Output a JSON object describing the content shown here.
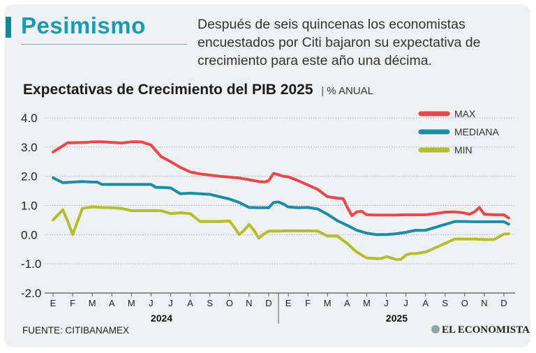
{
  "header": {
    "headline": "Pesimismo",
    "intro": "Después de seis quincenas los economistas encuestados por Citi bajaron su expectativa de crecimiento para este año una décima."
  },
  "footer": {
    "source": "FUENTE: CITIBANAMEX",
    "brand": "EL ECONOMISTA"
  },
  "chart_data": {
    "type": "line",
    "title": "Expectativas de Crecimiento del PIB 2025",
    "unit": "% ANUAL",
    "xlabel": "",
    "ylabel": "",
    "ylim": [
      -2.0,
      4.0
    ],
    "yticks": [
      "4.0",
      "3.0",
      "2.0",
      "1.0",
      "0.0",
      "-1.0",
      "-2.0"
    ],
    "ytick_values": [
      4,
      3,
      2,
      1,
      0,
      -1,
      -2
    ],
    "grid": true,
    "legend_position": "top-right",
    "months": [
      "E",
      "F",
      "M",
      "A",
      "M",
      "J",
      "J",
      "A",
      "S",
      "O",
      "N",
      "D",
      "E",
      "F",
      "M",
      "A",
      "M",
      "J",
      "J",
      "A",
      "S",
      "O",
      "N",
      "D"
    ],
    "years": [
      "2024",
      "2025"
    ],
    "x_unit": "months since January 2024",
    "series": [
      {
        "name": "MAX",
        "color": "#e8474b",
        "x": [
          0,
          0.75,
          1,
          1.75,
          2,
          2.5,
          3,
          3.5,
          4,
          4.5,
          5,
          5.5,
          6,
          6.5,
          7,
          7.5,
          8,
          8.5,
          9,
          9.5,
          10,
          10.5,
          10.8,
          11,
          11.25,
          11.5,
          11.75,
          12,
          12.5,
          13,
          13.5,
          14,
          14.5,
          14.8,
          15,
          15.25,
          15.5,
          15.75,
          16,
          16.5,
          17,
          17.5,
          18,
          18.5,
          19,
          19.5,
          20,
          20.5,
          21,
          21.25,
          21.5,
          21.75,
          22,
          22.5,
          23,
          23.25
        ],
        "values": [
          2.83,
          3.15,
          3.15,
          3.16,
          3.18,
          3.18,
          3.16,
          3.14,
          3.18,
          3.18,
          3.07,
          2.68,
          2.5,
          2.3,
          2.15,
          2.08,
          2.04,
          2.0,
          1.97,
          1.94,
          1.88,
          1.82,
          1.8,
          1.85,
          2.1,
          2.05,
          2.0,
          1.98,
          1.85,
          1.7,
          1.55,
          1.3,
          1.25,
          1.23,
          0.95,
          0.65,
          0.78,
          0.8,
          0.68,
          0.67,
          0.67,
          0.67,
          0.68,
          0.68,
          0.68,
          0.72,
          0.77,
          0.78,
          0.74,
          0.7,
          0.78,
          0.93,
          0.7,
          0.68,
          0.68,
          0.57
        ]
      },
      {
        "name": "MEDIANA",
        "color": "#1a8da4",
        "x": [
          0,
          0.5,
          1,
          1.5,
          2,
          2.25,
          2.5,
          3,
          3.5,
          4,
          4.5,
          5,
          5.25,
          5.5,
          6,
          6.5,
          7,
          7.5,
          8,
          8.5,
          9,
          9.5,
          10,
          10.5,
          11,
          11.25,
          11.5,
          11.75,
          12,
          12.5,
          13,
          13.5,
          14,
          14.5,
          15,
          15.5,
          16,
          16.5,
          17,
          17.5,
          18,
          18.5,
          19,
          19.5,
          20,
          20.5,
          21,
          21.5,
          22,
          22.5,
          23,
          23.25
        ],
        "values": [
          1.95,
          1.78,
          1.8,
          1.82,
          1.8,
          1.8,
          1.72,
          1.72,
          1.72,
          1.72,
          1.72,
          1.72,
          1.62,
          1.62,
          1.6,
          1.4,
          1.42,
          1.4,
          1.38,
          1.3,
          1.22,
          1.1,
          0.93,
          0.92,
          0.92,
          1.1,
          1.12,
          1.05,
          0.95,
          0.92,
          0.93,
          0.88,
          0.7,
          0.48,
          0.32,
          0.15,
          0.05,
          0.0,
          0.0,
          0.03,
          0.08,
          0.15,
          0.15,
          0.25,
          0.35,
          0.45,
          0.45,
          0.44,
          0.44,
          0.44,
          0.44,
          0.36
        ]
      },
      {
        "name": "MIN",
        "color": "#b5bd2e",
        "x": [
          0,
          0.5,
          0.75,
          1,
          1.25,
          1.5,
          2,
          2.5,
          3,
          3.5,
          4,
          4.5,
          5,
          5.5,
          6,
          6.5,
          7,
          7.5,
          8,
          8.5,
          9,
          9.25,
          9.5,
          9.75,
          10,
          10.25,
          10.5,
          10.75,
          11,
          11.5,
          12,
          12.5,
          13,
          13.5,
          14,
          14.25,
          14.5,
          15,
          15.5,
          16,
          16.5,
          16.75,
          17,
          17.25,
          17.5,
          17.75,
          18,
          18.25,
          18.5,
          19,
          19.5,
          20,
          20.5,
          21,
          21.5,
          22,
          22.5,
          23,
          23.25
        ],
        "values": [
          0.5,
          0.85,
          0.45,
          0.0,
          0.45,
          0.9,
          0.95,
          0.93,
          0.92,
          0.9,
          0.82,
          0.82,
          0.82,
          0.82,
          0.72,
          0.75,
          0.72,
          0.45,
          0.45,
          0.45,
          0.47,
          0.25,
          0.0,
          0.15,
          0.35,
          0.15,
          -0.12,
          0.02,
          0.12,
          0.12,
          0.13,
          0.13,
          0.13,
          0.12,
          -0.05,
          -0.05,
          -0.05,
          -0.3,
          -0.6,
          -0.8,
          -0.82,
          -0.82,
          -0.75,
          -0.8,
          -0.85,
          -0.85,
          -0.7,
          -0.65,
          -0.65,
          -0.6,
          -0.45,
          -0.3,
          -0.15,
          -0.15,
          -0.15,
          -0.17,
          -0.17,
          0.02,
          0.03
        ]
      }
    ]
  }
}
